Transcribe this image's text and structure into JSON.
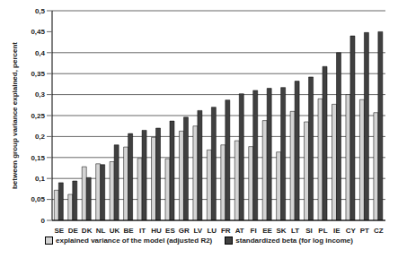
{
  "chart_data": {
    "type": "bar",
    "y_label": "between group variance explained, percent",
    "categories": [
      "SE",
      "DE",
      "DK",
      "NL",
      "UK",
      "BE",
      "IT",
      "HU",
      "ES",
      "GR",
      "LV",
      "LU",
      "FR",
      "AT",
      "FI",
      "EE",
      "SK",
      "LT",
      "SI",
      "PL",
      "IE",
      "CY",
      "PT",
      "CZ"
    ],
    "series": [
      {
        "name": "explained variance of the model (adjusted R2)",
        "color": "#d4d4d4",
        "values": [
          0.072,
          0.062,
          0.128,
          0.135,
          0.14,
          0.175,
          0.148,
          0.198,
          0.147,
          0.213,
          0.225,
          0.168,
          0.18,
          0.19,
          0.176,
          0.238,
          0.163,
          0.26,
          0.235,
          0.29,
          0.277,
          0.3,
          0.288,
          0.257
        ]
      },
      {
        "name": "standardized beta (for log income)",
        "color": "#404040",
        "values": [
          0.09,
          0.094,
          0.102,
          0.133,
          0.18,
          0.207,
          0.215,
          0.22,
          0.237,
          0.246,
          0.262,
          0.27,
          0.287,
          0.302,
          0.31,
          0.315,
          0.317,
          0.332,
          0.342,
          0.367,
          0.4,
          0.44,
          0.448,
          0.45
        ]
      }
    ],
    "ylim": [
      0,
      0.5
    ],
    "yticks": [
      0,
      {
        "value": 0.05,
        "label": "0,05"
      },
      {
        "value": 0.1,
        "label": "0,1"
      },
      {
        "value": 0.15,
        "label": "0,15"
      },
      {
        "value": 0.2,
        "label": "0,2"
      },
      {
        "value": 0.25,
        "label": "0,25"
      },
      {
        "value": 0.3,
        "label": "0,3"
      },
      {
        "value": 0.35,
        "label": "0,35"
      },
      {
        "value": 0.4,
        "label": "0,4"
      },
      {
        "value": 0.45,
        "label": "0,45"
      },
      {
        "value": 0.5,
        "label": "0,5"
      }
    ],
    "grid": true,
    "legend": "bottom"
  }
}
